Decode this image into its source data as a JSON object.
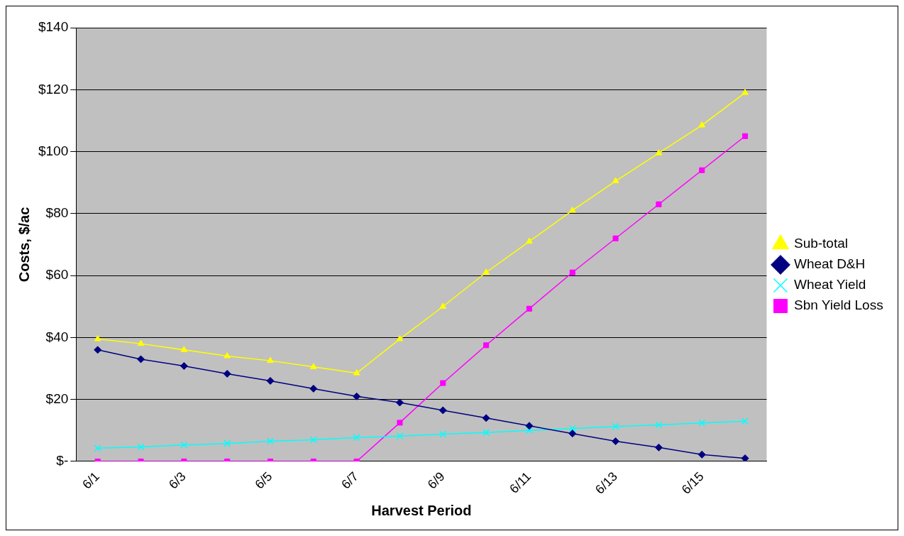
{
  "chart_data": {
    "type": "line",
    "xlabel": "Harvest Period",
    "ylabel": "Costs, $/ac",
    "categories": [
      "6/1",
      null,
      "6/3",
      null,
      "6/5",
      null,
      "6/7",
      null,
      "6/9",
      null,
      "6/11",
      null,
      "6/13",
      null,
      "6/15",
      null
    ],
    "series": [
      {
        "name": "Sub-total",
        "color": "#ffff00",
        "marker": "triangle",
        "values": [
          39.5,
          38,
          36,
          34,
          32.5,
          30.5,
          28.5,
          39.5,
          50,
          61,
          71,
          81,
          90.5,
          99.5,
          108.5,
          119
        ]
      },
      {
        "name": "Wheat D&H",
        "color": "#000080",
        "marker": "diamond",
        "values": [
          36,
          33,
          30.8,
          28.3,
          26,
          23.5,
          21,
          19,
          16.5,
          14,
          11.5,
          9,
          6.5,
          4.5,
          2.2,
          1
        ]
      },
      {
        "name": "Wheat Yield",
        "color": "#00ffff",
        "marker": "cross",
        "values": [
          4.3,
          4.7,
          5.3,
          5.8,
          6.5,
          7,
          7.7,
          8.2,
          8.8,
          9.3,
          10,
          10.6,
          11.3,
          11.8,
          12.4,
          13
        ]
      },
      {
        "name": "Sbn Yield Loss",
        "color": "#ff00ff",
        "marker": "square",
        "values": [
          0,
          0,
          0,
          0,
          0,
          0,
          0,
          12.5,
          25.3,
          37.5,
          49.3,
          61,
          72,
          83,
          94,
          105
        ]
      }
    ],
    "ylim": [
      0,
      140
    ],
    "yticks": [
      {
        "value": 0,
        "label": "$-"
      },
      {
        "value": 20,
        "label": "$20"
      },
      {
        "value": 40,
        "label": "$40"
      },
      {
        "value": 60,
        "label": "$60"
      },
      {
        "value": 80,
        "label": "$80"
      },
      {
        "value": 100,
        "label": "$100"
      },
      {
        "value": 120,
        "label": "$120"
      },
      {
        "value": 140,
        "label": "$140"
      }
    ],
    "grid": "y",
    "legend": "right",
    "line_style": "solid"
  }
}
